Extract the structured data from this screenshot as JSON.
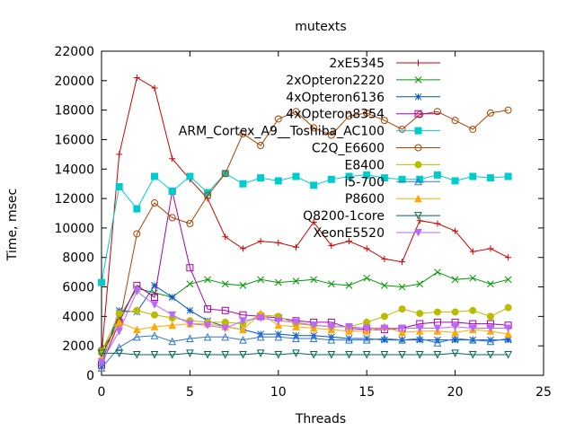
{
  "chart_data": {
    "type": "line",
    "title": "mutexts",
    "xlabel": "Threads",
    "ylabel": "Time, msec",
    "xlim": [
      0,
      25
    ],
    "ylim": [
      0,
      22000
    ],
    "xticks": [
      0,
      5,
      10,
      15,
      20,
      25
    ],
    "yticks": [
      0,
      2000,
      4000,
      6000,
      8000,
      10000,
      12000,
      14000,
      16000,
      18000,
      20000,
      22000
    ],
    "legend_position": "top-right",
    "grid": false,
    "series": [
      {
        "name": "2xE5345",
        "color": "#cc0000",
        "marker": "plus",
        "x": [
          0,
          1,
          2,
          3,
          4,
          5,
          6,
          7,
          8,
          9,
          10,
          11,
          12,
          13,
          14,
          15,
          16,
          17,
          18,
          19,
          20,
          21,
          22,
          23
        ],
        "y": [
          1400,
          15000,
          20200,
          19500,
          14700,
          13300,
          12000,
          9400,
          8600,
          9100,
          9000,
          8700,
          10400,
          8800,
          9100,
          8600,
          7900,
          7700,
          10500,
          10300,
          9800,
          8400,
          8600,
          8000
        ]
      },
      {
        "name": "2xOpteron2220",
        "color": "#009900",
        "marker": "cross",
        "x": [
          0,
          1,
          2,
          3,
          4,
          5,
          6,
          7,
          8,
          9,
          10,
          11,
          12,
          13,
          14,
          15,
          16,
          17,
          18,
          19,
          20,
          21,
          22,
          23
        ],
        "y": [
          1300,
          3900,
          5900,
          5600,
          5300,
          6200,
          6500,
          6200,
          6100,
          6500,
          6300,
          6400,
          6500,
          6200,
          6100,
          6600,
          6100,
          6000,
          6200,
          7000,
          6500,
          6600,
          6200,
          6500
        ]
      },
      {
        "name": "4xOpteron6136",
        "color": "#0055cc",
        "marker": "star",
        "x": [
          0,
          1,
          2,
          3,
          4,
          5,
          6,
          7,
          8,
          9,
          10,
          11,
          12,
          13,
          14,
          15,
          16,
          17,
          18,
          19,
          20,
          21,
          22,
          23
        ],
        "y": [
          800,
          4400,
          4300,
          6100,
          5300,
          4400,
          3700,
          3300,
          3100,
          2800,
          2800,
          2700,
          2700,
          2600,
          2500,
          2500,
          2400,
          2400,
          2400,
          2400,
          2400,
          2400,
          2400,
          2400
        ]
      },
      {
        "name": "4xOpteron8354",
        "color": "#aa00aa",
        "marker": "square-open",
        "x": [
          0,
          1,
          2,
          3,
          4,
          5,
          6,
          7,
          8,
          9,
          10,
          11,
          12,
          13,
          14,
          15,
          16,
          17,
          18,
          19,
          20,
          21,
          22,
          23
        ],
        "y": [
          700,
          3600,
          6100,
          5300,
          12500,
          7300,
          4500,
          4400,
          4100,
          4000,
          3900,
          3700,
          3600,
          3600,
          3200,
          3100,
          3100,
          3200,
          3500,
          3600,
          3600,
          3500,
          3500,
          3400
        ]
      },
      {
        "name": "ARM_Cortex_A9__Toshiba_AC100",
        "color": "#00cccc",
        "marker": "square-filled",
        "x": [
          0,
          1,
          2,
          3,
          4,
          5,
          6,
          7,
          8,
          9,
          10,
          11,
          12,
          13,
          14,
          15,
          16,
          17,
          18,
          19,
          20,
          21,
          22,
          23
        ],
        "y": [
          6300,
          12800,
          11300,
          13500,
          12500,
          13500,
          12400,
          13700,
          13000,
          13400,
          13200,
          13500,
          12900,
          13300,
          13500,
          13600,
          13400,
          13300,
          13300,
          13600,
          13200,
          13500,
          13400,
          13500
        ]
      },
      {
        "name": "C2Q_E6600",
        "color": "#aa4400",
        "marker": "circle-open",
        "x": [
          0,
          1,
          2,
          3,
          4,
          5,
          6,
          7,
          8,
          9,
          10,
          11,
          12,
          13,
          14,
          15,
          16,
          17,
          18,
          19,
          20,
          21,
          22,
          23
        ],
        "y": [
          1700,
          3500,
          9600,
          11700,
          10700,
          10300,
          12200,
          13700,
          16400,
          15600,
          17400,
          17900,
          16800,
          16300,
          17600,
          17800,
          17300,
          16700,
          17700,
          17900,
          17300,
          16700,
          17800,
          18000
        ]
      },
      {
        "name": "E8400",
        "color": "#bbbb00",
        "marker": "circle-filled",
        "x": [
          0,
          1,
          2,
          3,
          4,
          5,
          6,
          7,
          8,
          9,
          10,
          11,
          12,
          13,
          14,
          15,
          16,
          17,
          18,
          19,
          20,
          21,
          22,
          23
        ],
        "y": [
          1600,
          4200,
          4400,
          4100,
          3900,
          3700,
          3600,
          3600,
          3500,
          4100,
          4000,
          3500,
          3400,
          3300,
          3300,
          3600,
          4000,
          4500,
          4200,
          4300,
          4300,
          4400,
          4000,
          4600
        ]
      },
      {
        "name": "i5-700",
        "color": "#3377cc",
        "marker": "triangle-open",
        "x": [
          0,
          1,
          2,
          3,
          4,
          5,
          6,
          7,
          8,
          9,
          10,
          11,
          12,
          13,
          14,
          15,
          16,
          17,
          18,
          19,
          20,
          21,
          22,
          23
        ],
        "y": [
          500,
          1900,
          2600,
          2700,
          2300,
          2500,
          2600,
          2600,
          2400,
          2600,
          2600,
          2500,
          2500,
          2400,
          2400,
          2400,
          2500,
          2400,
          2500,
          2200,
          2500,
          2400,
          2300,
          2500
        ]
      },
      {
        "name": "P8600",
        "color": "#ffaa00",
        "marker": "triangle-filled",
        "x": [
          0,
          1,
          2,
          3,
          4,
          5,
          6,
          7,
          8,
          9,
          10,
          11,
          12,
          13,
          14,
          15,
          16,
          17,
          18,
          19,
          20,
          21,
          22,
          23
        ],
        "y": [
          1200,
          3600,
          3100,
          3300,
          3400,
          3500,
          3500,
          3300,
          3100,
          4200,
          3400,
          3300,
          3200,
          3100,
          3000,
          3000,
          3300,
          2900,
          3000,
          3000,
          2900,
          3100,
          3000,
          2800
        ]
      },
      {
        "name": "Q8200-1core",
        "color": "#006655",
        "marker": "triangle-down-open",
        "x": [
          0,
          1,
          2,
          3,
          4,
          5,
          6,
          7,
          8,
          9,
          10,
          11,
          12,
          13,
          14,
          15,
          16,
          17,
          18,
          19,
          20,
          21,
          22,
          23
        ],
        "y": [
          1500,
          1500,
          1400,
          1400,
          1400,
          1500,
          1400,
          1400,
          1400,
          1500,
          1400,
          1500,
          1400,
          1400,
          1400,
          1400,
          1400,
          1400,
          1400,
          1400,
          1500,
          1400,
          1400,
          1400
        ]
      },
      {
        "name": "XeonE5520",
        "color": "#bb66ff",
        "marker": "triangle-down-filled",
        "x": [
          0,
          1,
          2,
          3,
          4,
          5,
          6,
          7,
          8,
          9,
          10,
          11,
          12,
          13,
          14,
          15,
          16,
          17,
          18,
          19,
          20,
          21,
          22,
          23
        ],
        "y": [
          900,
          3000,
          5700,
          4800,
          4100,
          3500,
          3400,
          3200,
          3700,
          3900,
          3700,
          3600,
          3400,
          3300,
          3300,
          3200,
          3200,
          3200,
          3200,
          3200,
          3300,
          3200,
          3200,
          3200
        ]
      }
    ]
  }
}
